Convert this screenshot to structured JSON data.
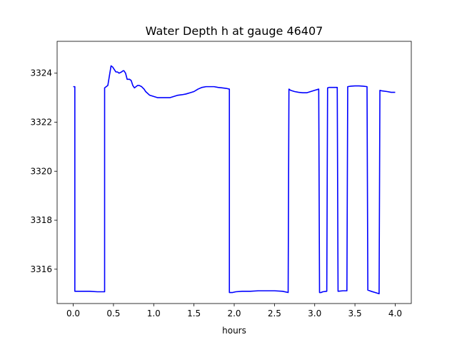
{
  "chart_data": {
    "type": "line",
    "title": "Water Depth h at gauge 46407",
    "xlabel": "hours",
    "ylabel": "",
    "xlim": [
      -0.2,
      4.2
    ],
    "ylim": [
      3314.6,
      3325.3
    ],
    "xticks": [
      0.0,
      0.5,
      1.0,
      1.5,
      2.0,
      2.5,
      3.0,
      3.5,
      4.0
    ],
    "xtick_labels": [
      "0.0",
      "0.5",
      "1.0",
      "1.5",
      "2.0",
      "2.5",
      "3.0",
      "3.5",
      "4.0"
    ],
    "yticks": [
      3316,
      3318,
      3320,
      3322,
      3324
    ],
    "ytick_labels": [
      "3316",
      "3318",
      "3320",
      "3322",
      "3324"
    ],
    "grid": false,
    "line_color": "#0000ff",
    "series": [
      {
        "x": [
          0.0,
          0.02,
          0.02,
          0.1,
          0.2,
          0.3,
          0.39,
          0.39,
          0.43,
          0.45,
          0.47,
          0.49,
          0.51,
          0.53,
          0.55,
          0.57,
          0.6,
          0.62,
          0.63,
          0.65,
          0.67,
          0.7,
          0.72,
          0.74,
          0.76,
          0.78,
          0.8,
          0.82,
          0.85,
          0.88,
          0.9,
          0.95,
          1.0,
          1.05,
          1.1,
          1.15,
          1.2,
          1.25,
          1.3,
          1.35,
          1.4,
          1.45,
          1.5,
          1.55,
          1.6,
          1.65,
          1.7,
          1.75,
          1.8,
          1.85,
          1.9,
          1.94,
          1.94,
          1.98,
          2.02,
          2.1,
          2.2,
          2.3,
          2.4,
          2.5,
          2.6,
          2.67,
          2.68,
          2.7,
          2.75,
          2.8,
          2.85,
          2.9,
          2.95,
          3.0,
          3.05,
          3.06,
          3.08,
          3.1,
          3.15,
          3.16,
          3.18,
          3.2,
          3.25,
          3.28,
          3.29,
          3.35,
          3.4,
          3.41,
          3.45,
          3.5,
          3.55,
          3.6,
          3.65,
          3.66,
          3.7,
          3.75,
          3.8,
          3.81,
          3.83,
          3.9,
          3.95,
          4.0
        ],
        "y": [
          3323.45,
          3323.45,
          3315.1,
          3315.1,
          3315.1,
          3315.08,
          3315.08,
          3323.4,
          3323.5,
          3323.9,
          3324.3,
          3324.25,
          3324.15,
          3324.05,
          3324.05,
          3324.0,
          3324.05,
          3324.1,
          3324.1,
          3324.0,
          3323.75,
          3323.75,
          3323.7,
          3323.5,
          3323.4,
          3323.45,
          3323.5,
          3323.5,
          3323.45,
          3323.35,
          3323.25,
          3323.1,
          3323.05,
          3323.0,
          3323.0,
          3323.0,
          3323.0,
          3323.05,
          3323.1,
          3323.12,
          3323.15,
          3323.2,
          3323.25,
          3323.35,
          3323.42,
          3323.45,
          3323.45,
          3323.45,
          3323.42,
          3323.4,
          3323.38,
          3323.35,
          3315.05,
          3315.05,
          3315.08,
          3315.1,
          3315.1,
          3315.12,
          3315.12,
          3315.12,
          3315.1,
          3315.05,
          3323.35,
          3323.3,
          3323.25,
          3323.22,
          3323.2,
          3323.2,
          3323.25,
          3323.3,
          3323.35,
          3315.05,
          3315.05,
          3315.08,
          3315.1,
          3323.4,
          3323.42,
          3323.42,
          3323.42,
          3323.42,
          3315.1,
          3315.12,
          3315.12,
          3323.45,
          3323.47,
          3323.48,
          3323.48,
          3323.47,
          3323.45,
          3315.15,
          3315.1,
          3315.05,
          3315.0,
          3323.3,
          3323.28,
          3323.25,
          3323.22,
          3323.22
        ]
      }
    ]
  }
}
